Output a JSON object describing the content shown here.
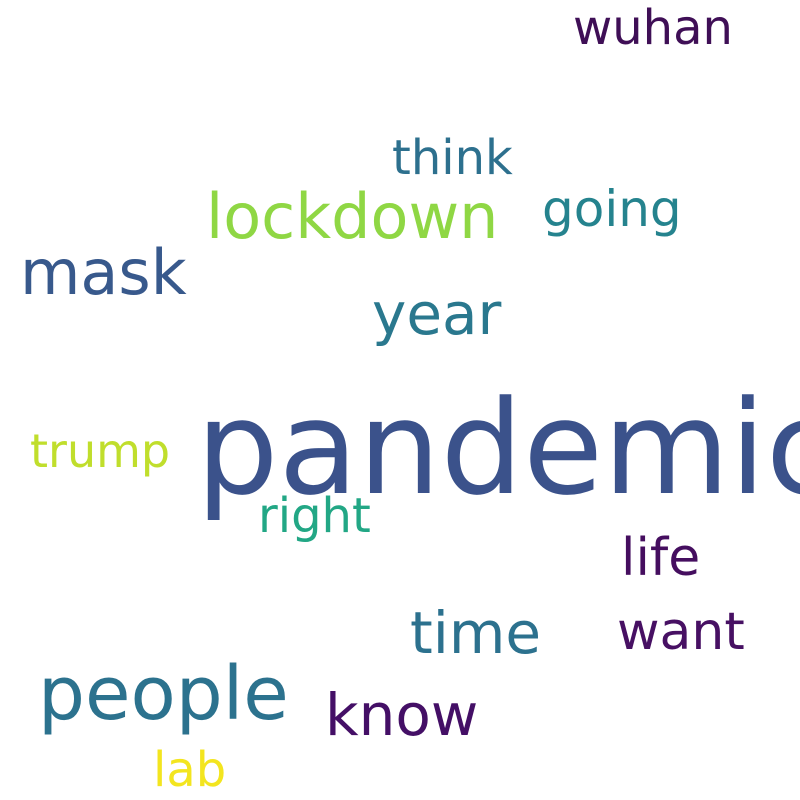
{
  "words": [
    {
      "id": "pandemic",
      "text": "pandemic",
      "color": "#3b528b"
    },
    {
      "id": "people",
      "text": "people",
      "color": "#2c728e"
    },
    {
      "id": "lockdown",
      "text": "lockdown",
      "color": "#8fd744"
    },
    {
      "id": "mask",
      "text": "mask",
      "color": "#38598c"
    },
    {
      "id": "year",
      "text": "year",
      "color": "#2a788e"
    },
    {
      "id": "time",
      "text": "time",
      "color": "#2c718e"
    },
    {
      "id": "know",
      "text": "know",
      "color": "#440f66"
    },
    {
      "id": "want",
      "text": "want",
      "color": "#471063"
    },
    {
      "id": "life",
      "text": "life",
      "color": "#450e5f"
    },
    {
      "id": "think",
      "text": "think",
      "color": "#2d708e"
    },
    {
      "id": "wuhan",
      "text": "wuhan",
      "color": "#3f0f56"
    },
    {
      "id": "trump",
      "text": "trump",
      "color": "#c0de2c"
    },
    {
      "id": "going",
      "text": "going",
      "color": "#25838e"
    },
    {
      "id": "right",
      "text": "right",
      "color": "#22a785"
    },
    {
      "id": "lab",
      "text": "lab",
      "color": "#f3e51f"
    }
  ]
}
